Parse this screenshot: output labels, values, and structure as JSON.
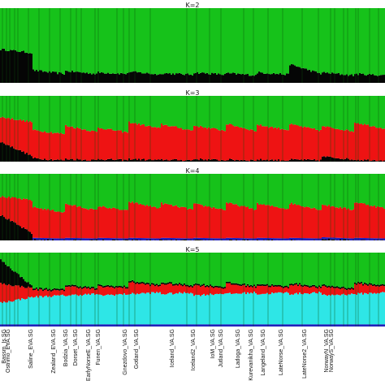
{
  "chart_data": {
    "type": "bar",
    "stacked": true,
    "colors": {
      "green": "#16c21a",
      "black": "#050505",
      "red": "#ee1313",
      "blue": "#2222bb",
      "cyan": "#2ee6e6",
      "separator": "#0a4f0a"
    },
    "populations": [
      "Bassm_Is.SG",
      "Ostrimo_EVA.SG",
      "Saline_EVA.SG",
      "Zealand_EVA.SG",
      "Bodzia_VA.SG",
      "Dorset_VA.SG",
      "EarlyNorseE_VA.SG",
      "Funen_VA.SG",
      "Gnezdovo_VA.SG",
      "Gotland_VA.SG",
      "Iceland_VA.SG",
      "Iceland2_VA.SG",
      "IoM_VA.SG",
      "Jutland_VA.SG",
      "Ladoga_VA.SG",
      "Kurevanikha_VA.SG",
      "Langeland_VA.SG",
      "LateNorse_VA.SG",
      "LateNorse2_VA.SG",
      "NorwayN_VA.SG",
      "NorwayS_VA.SG"
    ],
    "panels": [
      {
        "title": "K=2",
        "components": [
          "black",
          "green"
        ],
        "segments": [
          {
            "black": [
              0.45,
              0.4
            ]
          },
          {
            "black": [
              0.17,
              0.12
            ]
          },
          {
            "black": [
              0.16,
              0.12
            ]
          },
          {
            "black": [
              0.14,
              0.12
            ]
          },
          {
            "black": [
              0.15,
              0.11
            ]
          },
          {
            "black": [
              0.13,
              0.11
            ]
          },
          {
            "black": [
              0.14,
              0.11
            ]
          },
          {
            "black": [
              0.13,
              0.1
            ]
          },
          {
            "black": [
              0.14,
              0.11
            ]
          },
          {
            "black": [
              0.25,
              0.12
            ]
          },
          {
            "black": [
              0.14,
              0.1
            ]
          },
          {
            "black": [
              0.12,
              0.1
            ]
          }
        ]
      },
      {
        "title": "K=3",
        "components": [
          "black",
          "red",
          "green"
        ],
        "segments": [
          {
            "black": [
              0.3,
              0.08
            ],
            "red": [
              0.68,
              0.6
            ]
          },
          {
            "black": [
              0.05,
              0.02
            ],
            "red": [
              0.48,
              0.42
            ]
          },
          {
            "black": [
              0.04,
              0.02
            ],
            "red": [
              0.55,
              0.45
            ]
          },
          {
            "black": [
              0.04,
              0.02
            ],
            "red": [
              0.52,
              0.44
            ]
          },
          {
            "black": [
              0.04,
              0.02
            ],
            "red": [
              0.6,
              0.5
            ]
          },
          {
            "black": [
              0.03,
              0.02
            ],
            "red": [
              0.57,
              0.47
            ]
          },
          {
            "black": [
              0.04,
              0.02
            ],
            "red": [
              0.55,
              0.47
            ]
          },
          {
            "black": [
              0.03,
              0.02
            ],
            "red": [
              0.58,
              0.46
            ]
          },
          {
            "black": [
              0.03,
              0.02
            ],
            "red": [
              0.56,
              0.48
            ]
          },
          {
            "black": [
              0.03,
              0.02
            ],
            "red": [
              0.57,
              0.47
            ]
          },
          {
            "black": [
              0.08,
              0.03
            ],
            "red": [
              0.54,
              0.46
            ]
          },
          {
            "black": [
              0.03,
              0.02
            ],
            "red": [
              0.6,
              0.5
            ]
          }
        ]
      },
      {
        "title": "K=4",
        "components": [
          "black",
          "blue",
          "red",
          "green"
        ],
        "segments": [
          {
            "black": [
              0.38,
              0.1
            ],
            "blue": [
              0.03,
              0.03
            ],
            "red": [
              0.66,
              0.6
            ]
          },
          {
            "black": [
              0.01,
              0.0
            ],
            "blue": [
              0.04,
              0.03
            ],
            "red": [
              0.5,
              0.42
            ]
          },
          {
            "black": [
              0.0,
              0.0
            ],
            "blue": [
              0.04,
              0.03
            ],
            "red": [
              0.55,
              0.45
            ]
          },
          {
            "black": [
              0.0,
              0.0
            ],
            "blue": [
              0.04,
              0.03
            ],
            "red": [
              0.52,
              0.44
            ]
          },
          {
            "black": [
              0.0,
              0.0
            ],
            "blue": [
              0.04,
              0.03
            ],
            "red": [
              0.58,
              0.48
            ]
          },
          {
            "black": [
              0.0,
              0.0
            ],
            "blue": [
              0.04,
              0.03
            ],
            "red": [
              0.56,
              0.46
            ]
          },
          {
            "black": [
              0.0,
              0.0
            ],
            "blue": [
              0.04,
              0.03
            ],
            "red": [
              0.55,
              0.46
            ]
          },
          {
            "black": [
              0.0,
              0.0
            ],
            "blue": [
              0.04,
              0.03
            ],
            "red": [
              0.57,
              0.46
            ]
          },
          {
            "black": [
              0.0,
              0.0
            ],
            "blue": [
              0.04,
              0.03
            ],
            "red": [
              0.55,
              0.47
            ]
          },
          {
            "black": [
              0.0,
              0.0
            ],
            "blue": [
              0.04,
              0.03
            ],
            "red": [
              0.56,
              0.46
            ]
          },
          {
            "black": [
              0.02,
              0.0
            ],
            "blue": [
              0.05,
              0.03
            ],
            "red": [
              0.54,
              0.46
            ]
          },
          {
            "black": [
              0.0,
              0.0
            ],
            "blue": [
              0.04,
              0.03
            ],
            "red": [
              0.58,
              0.48
            ]
          }
        ]
      },
      {
        "title": "K=5",
        "components": [
          "blue",
          "cyan",
          "red",
          "black",
          "green"
        ],
        "segments": [
          {
            "blue": [
              0.03,
              0.03
            ],
            "cyan": [
              0.32,
              0.4
            ],
            "red": [
              0.58,
              0.52
            ],
            "black": [
              0.9,
              0.54
            ]
          },
          {
            "blue": [
              0.03,
              0.03
            ],
            "cyan": [
              0.4,
              0.42
            ],
            "red": [
              0.5,
              0.48
            ],
            "black": [
              0.52,
              0.5
            ]
          },
          {
            "blue": [
              0.03,
              0.03
            ],
            "cyan": [
              0.42,
              0.44
            ],
            "red": [
              0.55,
              0.5
            ],
            "black": [
              0.57,
              0.52
            ]
          },
          {
            "blue": [
              0.03,
              0.03
            ],
            "cyan": [
              0.42,
              0.44
            ],
            "red": [
              0.54,
              0.52
            ],
            "black": [
              0.56,
              0.54
            ]
          },
          {
            "blue": [
              0.03,
              0.03
            ],
            "cyan": [
              0.44,
              0.46
            ],
            "red": [
              0.6,
              0.54
            ],
            "black": [
              0.62,
              0.56
            ]
          },
          {
            "blue": [
              0.03,
              0.03
            ],
            "cyan": [
              0.44,
              0.46
            ],
            "red": [
              0.58,
              0.54
            ],
            "black": [
              0.6,
              0.56
            ]
          },
          {
            "blue": [
              0.03,
              0.03
            ],
            "cyan": [
              0.42,
              0.45
            ],
            "red": [
              0.56,
              0.52
            ],
            "black": [
              0.58,
              0.54
            ]
          },
          {
            "blue": [
              0.03,
              0.03
            ],
            "cyan": [
              0.44,
              0.46
            ],
            "red": [
              0.58,
              0.53
            ],
            "black": [
              0.6,
              0.55
            ]
          },
          {
            "blue": [
              0.03,
              0.03
            ],
            "cyan": [
              0.44,
              0.46
            ],
            "red": [
              0.56,
              0.52
            ],
            "black": [
              0.58,
              0.54
            ]
          },
          {
            "blue": [
              0.03,
              0.03
            ],
            "cyan": [
              0.44,
              0.46
            ],
            "red": [
              0.57,
              0.52
            ],
            "black": [
              0.59,
              0.54
            ]
          },
          {
            "blue": [
              0.03,
              0.03
            ],
            "cyan": [
              0.42,
              0.44
            ],
            "red": [
              0.54,
              0.5
            ],
            "black": [
              0.56,
              0.52
            ]
          },
          {
            "blue": [
              0.03,
              0.03
            ],
            "cyan": [
              0.44,
              0.46
            ],
            "red": [
              0.58,
              0.54
            ],
            "black": [
              0.6,
              0.56
            ]
          }
        ]
      }
    ]
  }
}
